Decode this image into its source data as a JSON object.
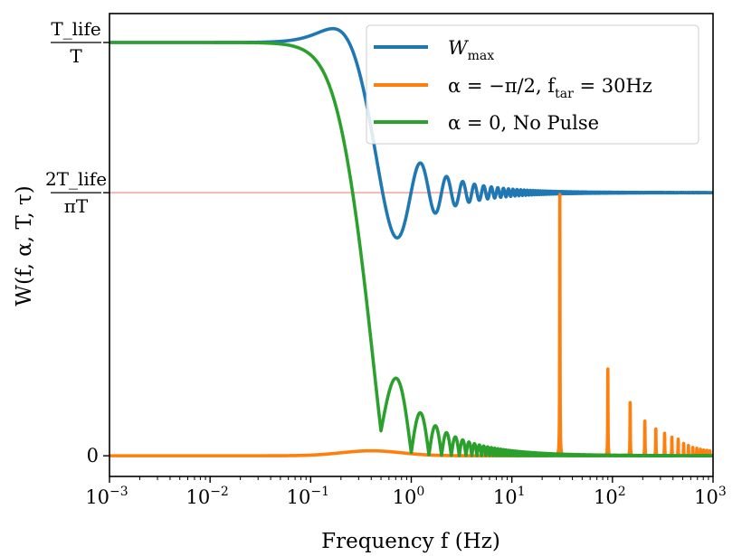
{
  "chart_data": {
    "type": "line",
    "title": "",
    "xlabel": "Frequency f (Hz)",
    "ylabel": "W(f, α, T, τ)",
    "xscale": "log",
    "xlim": [
      0.001,
      1000
    ],
    "ylim": [
      -0.05,
      1.07
    ],
    "x_ticks": [
      {
        "value": 0.001,
        "base": "10",
        "exp": "−3"
      },
      {
        "value": 0.01,
        "base": "10",
        "exp": "−2"
      },
      {
        "value": 0.1,
        "base": "10",
        "exp": "−1"
      },
      {
        "value": 1,
        "base": "10",
        "exp": "0"
      },
      {
        "value": 10,
        "base": "10",
        "exp": "1"
      },
      {
        "value": 100,
        "base": "10",
        "exp": "2"
      },
      {
        "value": 1000,
        "base": "10",
        "exp": "3"
      }
    ],
    "y_ticks": [
      {
        "value": 1.0,
        "numerator": "T_life",
        "denominator": "T"
      },
      {
        "value": 0.6366,
        "numerator": "2T_life",
        "denominator": "πT"
      },
      {
        "value": 0.0,
        "label": "0"
      }
    ],
    "reference_line": {
      "y": 0.6366,
      "color": "#f2b8b8"
    },
    "series": [
      {
        "name": "W_max",
        "legend": "W",
        "legend_sub": "max",
        "color": "#1f77b4",
        "description": "envelope: flat at T_life/T below ~0.1 Hz, falls with damped ringing to 2T_life/(πT) near 0.6 Hz, then flat"
      },
      {
        "name": "alpha=-pi/2, f_tar=30Hz",
        "legend": "α = −π/2, f",
        "legend_sub": "tar",
        "legend_tail": " = 30Hz",
        "color": "#ff7f0e",
        "description": "near zero at low frequency, sharp resonance peak at 30 Hz reaching 2T_life/(πT), decaying harmonic peaks at 90, 150, 210 ... Hz"
      },
      {
        "name": "alpha=0, No Pulse",
        "legend": "α = 0, No Pulse",
        "color": "#2ca02c",
        "description": "sinc-like |sin(πfT)/(πfT)| shape with zero at 0.5 Hz and decaying lobes"
      }
    ],
    "legend_position": "upper-right"
  }
}
